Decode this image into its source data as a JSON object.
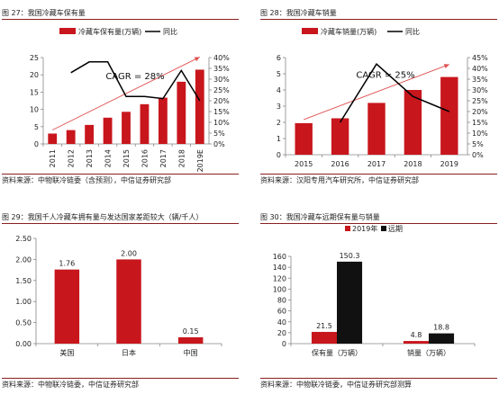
{
  "panels": [
    {
      "title": "图 27：我国冷藏车保有量",
      "source": "资料来源：中物联冷链委（含预测），中信证券研究部"
    },
    {
      "title": "图 28：我国冷藏车销量",
      "source": "资料来源：汉阳专用汽车研究所，中信证券研究部"
    },
    {
      "title": "图 29：我国千人冷藏车拥有量与发达国家差距较大（辆/千人）",
      "source": "资料来源：中物联冷链委，中信证券研究部"
    },
    {
      "title": "图 30：我国冷藏车远期保有量与销量",
      "source": "资料来源：中物联冷链委，中信证券研究部测算"
    }
  ],
  "chart_data": [
    {
      "type": "bar",
      "categories": [
        "2011",
        "2012",
        "2013",
        "2014",
        "2015",
        "2016",
        "2017",
        "2018",
        "2019E"
      ],
      "series": [
        {
          "name": "冷藏车保有量(万辆)",
          "type": "bar",
          "axis": "left",
          "color": "#c8161d",
          "values": [
            3.0,
            4.0,
            5.5,
            7.6,
            9.3,
            11.5,
            13.4,
            18.0,
            21.5
          ]
        },
        {
          "name": "同比",
          "type": "line",
          "axis": "right",
          "color": "#000000",
          "values": [
            null,
            0.33,
            0.38,
            0.38,
            0.22,
            0.22,
            0.21,
            0.34,
            0.2
          ]
        }
      ],
      "ylim": [
        0,
        25
      ],
      "yticks": [
        0,
        5,
        10,
        15,
        20,
        25
      ],
      "y2lim": [
        0,
        0.4
      ],
      "y2ticks": [
        "0%",
        "5%",
        "10%",
        "15%",
        "20%",
        "25%",
        "30%",
        "35%",
        "40%"
      ],
      "annotation": "CAGR = 28%",
      "grid": false,
      "legend": "top"
    },
    {
      "type": "bar",
      "categories": [
        "2015",
        "2016",
        "2017",
        "2018",
        "2019"
      ],
      "series": [
        {
          "name": "冷藏车销量(万辆)",
          "type": "bar",
          "axis": "left",
          "color": "#c8161d",
          "values": [
            1.95,
            2.25,
            3.2,
            4.0,
            4.8
          ]
        },
        {
          "name": "同比",
          "type": "line",
          "axis": "right",
          "color": "#000000",
          "values": [
            null,
            0.15,
            0.42,
            0.27,
            0.2
          ]
        }
      ],
      "ylim": [
        0,
        6
      ],
      "yticks": [
        0,
        1,
        2,
        3,
        4,
        5,
        6
      ],
      "y2lim": [
        0,
        0.45
      ],
      "y2ticks": [
        "0%",
        "5%",
        "10%",
        "15%",
        "20%",
        "25%",
        "30%",
        "35%",
        "40%",
        "45%"
      ],
      "annotation": "CAGR = 25%",
      "grid": false,
      "legend": "top"
    },
    {
      "type": "bar",
      "categories": [
        "美国",
        "日本",
        "中国"
      ],
      "series": [
        {
          "name": "",
          "color": "#c8161d",
          "values": [
            1.76,
            2.0,
            0.15
          ],
          "labels": [
            "1.76",
            "2.00",
            "0.15"
          ]
        }
      ],
      "ylim": [
        0,
        2.5
      ],
      "yticks": [
        "0.00",
        "0.50",
        "1.00",
        "1.50",
        "2.00",
        "2.50"
      ],
      "grid": false
    },
    {
      "type": "bar",
      "categories": [
        "保有量（万辆）",
        "销量（万辆）"
      ],
      "series": [
        {
          "name": "2019年",
          "color": "#c8161d",
          "values": [
            21.5,
            4.8
          ],
          "labels": [
            "21.5",
            "4.8"
          ]
        },
        {
          "name": "远期",
          "color": "#111111",
          "values": [
            150.3,
            18.8
          ],
          "labels": [
            "150.3",
            "18.8"
          ]
        }
      ],
      "ylim": [
        0,
        160
      ],
      "yticks": [
        0,
        20,
        40,
        60,
        80,
        100,
        120,
        140,
        160
      ],
      "grid": false,
      "legend": "top"
    }
  ]
}
